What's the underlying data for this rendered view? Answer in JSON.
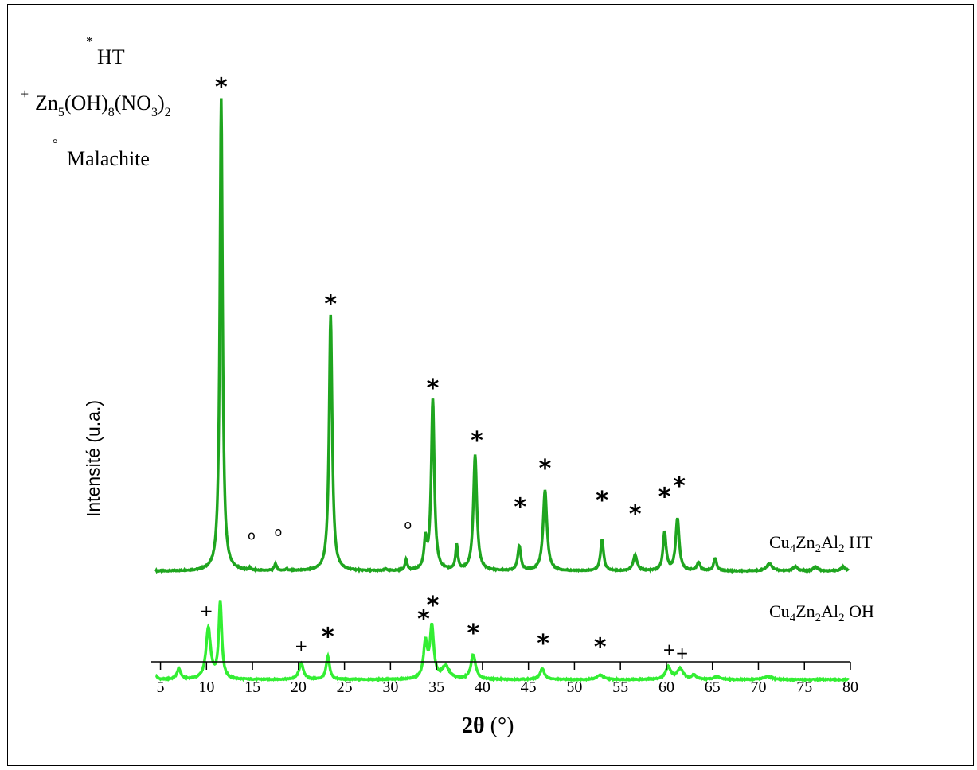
{
  "chart_data": {
    "type": "line",
    "xlabel": "2θ (°)",
    "ylabel": "Intensité (u.a.)",
    "xlim": [
      4,
      80
    ],
    "x_ticks": [
      5,
      10,
      15,
      20,
      25,
      30,
      35,
      40,
      45,
      50,
      55,
      60,
      65,
      70,
      75,
      80
    ],
    "grid": false,
    "legend": {
      "placement": "top-left",
      "entries": [
        {
          "symbol": "*",
          "label": "HT"
        },
        {
          "symbol": "+",
          "label": "Zn5(OH)8(NO3)2"
        },
        {
          "symbol": "°",
          "label": "Malachite"
        }
      ]
    },
    "series": [
      {
        "name": "Cu4Zn2Al2 HT",
        "color": "#1fa51f",
        "baseline": 0,
        "noise": 0.015,
        "peaks": [
          [
            11.6,
            13.5,
            0.35
          ],
          [
            14.7,
            0.07,
            0.25
          ],
          [
            17.5,
            0.2,
            0.3
          ],
          [
            18.7,
            0.06,
            0.25
          ],
          [
            23.5,
            7.3,
            0.4
          ],
          [
            29.5,
            0.05,
            0.3
          ],
          [
            31.7,
            0.3,
            0.3
          ],
          [
            33.8,
            0.8,
            0.35
          ],
          [
            34.6,
            4.9,
            0.4
          ],
          [
            37.2,
            0.7,
            0.3
          ],
          [
            39.2,
            3.3,
            0.45
          ],
          [
            44.0,
            0.7,
            0.4
          ],
          [
            46.8,
            2.3,
            0.5
          ],
          [
            53.0,
            0.9,
            0.4
          ],
          [
            56.6,
            0.45,
            0.5
          ],
          [
            59.8,
            1.1,
            0.4
          ],
          [
            61.2,
            1.5,
            0.45
          ],
          [
            63.5,
            0.25,
            0.4
          ],
          [
            65.3,
            0.35,
            0.4
          ],
          [
            71.2,
            0.2,
            0.8
          ],
          [
            74.0,
            0.12,
            0.6
          ],
          [
            76.2,
            0.12,
            0.6
          ],
          [
            79.2,
            0.12,
            0.6
          ]
        ],
        "annotations": [
          {
            "x": 11.6,
            "y": 13.6,
            "symbol": "*"
          },
          {
            "x": 14.9,
            "y": 0.9,
            "symbol": "°"
          },
          {
            "x": 17.8,
            "y": 1.0,
            "symbol": "°"
          },
          {
            "x": 23.5,
            "y": 7.4,
            "symbol": "*"
          },
          {
            "x": 31.9,
            "y": 1.2,
            "symbol": "°"
          },
          {
            "x": 34.6,
            "y": 5.0,
            "symbol": "*"
          },
          {
            "x": 39.4,
            "y": 3.5,
            "symbol": "*"
          },
          {
            "x": 44.1,
            "y": 1.6,
            "symbol": "*"
          },
          {
            "x": 46.8,
            "y": 2.7,
            "symbol": "*"
          },
          {
            "x": 53.0,
            "y": 1.8,
            "symbol": "*"
          },
          {
            "x": 56.6,
            "y": 1.4,
            "symbol": "*"
          },
          {
            "x": 59.8,
            "y": 1.9,
            "symbol": "*"
          },
          {
            "x": 61.4,
            "y": 2.2,
            "symbol": "*"
          }
        ]
      },
      {
        "name": "Cu4Zn2Al2 OH",
        "color": "#33ee33",
        "baseline": -3.1,
        "noise": 0.015,
        "peaks": [
          [
            4.5,
            0.1,
            0.4
          ],
          [
            7.0,
            0.3,
            0.5
          ],
          [
            10.2,
            1.45,
            0.6
          ],
          [
            11.5,
            2.2,
            0.4
          ],
          [
            20.3,
            0.45,
            0.6
          ],
          [
            23.2,
            0.65,
            0.45
          ],
          [
            33.8,
            1.0,
            0.5
          ],
          [
            34.5,
            1.45,
            0.5
          ],
          [
            36.0,
            0.35,
            1.0
          ],
          [
            39.0,
            0.7,
            0.6
          ],
          [
            46.5,
            0.3,
            0.6
          ],
          [
            52.8,
            0.13,
            0.8
          ],
          [
            60.2,
            0.35,
            0.7
          ],
          [
            61.5,
            0.3,
            0.8
          ],
          [
            63.0,
            0.12,
            0.6
          ],
          [
            65.5,
            0.08,
            0.8
          ],
          [
            71.0,
            0.08,
            1.2
          ]
        ],
        "annotations": [
          {
            "x": 10.0,
            "y": -1.3,
            "symbol": "+"
          },
          {
            "x": 20.3,
            "y": -2.3,
            "symbol": "+"
          },
          {
            "x": 23.2,
            "y": -2.1,
            "symbol": "*"
          },
          {
            "x": 33.6,
            "y": -1.6,
            "symbol": "*"
          },
          {
            "x": 34.6,
            "y": -1.2,
            "symbol": "*"
          },
          {
            "x": 39.0,
            "y": -2.0,
            "symbol": "*"
          },
          {
            "x": 46.6,
            "y": -2.3,
            "symbol": "*"
          },
          {
            "x": 52.8,
            "y": -2.4,
            "symbol": "*"
          },
          {
            "x": 60.3,
            "y": -2.4,
            "symbol": "+"
          },
          {
            "x": 61.7,
            "y": -2.5,
            "symbol": "+"
          }
        ]
      }
    ]
  }
}
